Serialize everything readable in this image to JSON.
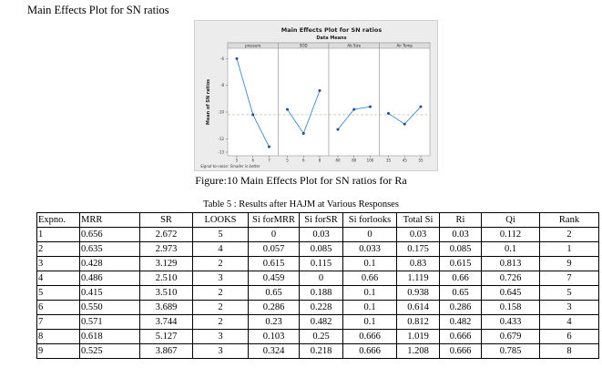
{
  "heading": "Main Effects Plot for SN ratios",
  "chart_data": {
    "type": "line",
    "title": "Main Effects Plot for SN ratios",
    "subtitle": "Data Means",
    "ylabel": "Mean of SN ratios",
    "footnote": "Signal-to-noise: Smaller is better",
    "ylim": [
      -13,
      -5.5
    ],
    "yticks": [
      -6,
      -8,
      -10,
      -12,
      -13
    ],
    "reference_line": -10.2,
    "panels": [
      {
        "name": "pressure",
        "x": [
          "5",
          "6",
          "7"
        ],
        "values": [
          -6.0,
          -10.2,
          -12.6
        ]
      },
      {
        "name": "SOD",
        "x": [
          "5",
          "6",
          "8"
        ],
        "values": [
          -9.8,
          -11.6,
          -8.4
        ]
      },
      {
        "name": "Ab Size",
        "x": [
          "60",
          "80",
          "100"
        ],
        "values": [
          -11.3,
          -9.8,
          -9.6
        ]
      },
      {
        "name": "Air Temp",
        "x": [
          "35",
          "45",
          "55"
        ],
        "values": [
          -10.1,
          -10.9,
          -9.6
        ]
      }
    ]
  },
  "figure_caption": "Figure:10  Main Effects Plot for SN ratios for Ra",
  "table_caption": "Table 5 : Results after HAJM at Various Responses",
  "table": {
    "headers": [
      "Expno.",
      "MRR",
      "SR",
      "LOOKS",
      "Si forMRR",
      "Si forSR",
      "Si forlooks",
      "Total Si",
      "Ri",
      "Qi",
      "Rank"
    ],
    "rows": [
      [
        "1",
        "0.656",
        "2.672",
        "5",
        "0",
        "0.03",
        "0",
        "0.03",
        "0.03",
        "0.112",
        "2"
      ],
      [
        "2",
        "0.635",
        "2.973",
        "4",
        "0.057",
        "0.085",
        "0.033",
        "0.175",
        "0.085",
        "0.1",
        "1"
      ],
      [
        "3",
        "0.428",
        "3.129",
        "2",
        "0.615",
        "0.115",
        "0.1",
        "0.83",
        "0.615",
        "0.813",
        "9"
      ],
      [
        "4",
        "0.486",
        "2.510",
        "3",
        "0.459",
        "0",
        "0.66",
        "1.119",
        "0.66",
        "0.726",
        "7"
      ],
      [
        "5",
        "0.415",
        "3.510",
        "2",
        "0.65",
        "0.188",
        "0.1",
        "0.938",
        "0.65",
        "0.645",
        "5"
      ],
      [
        "6",
        "0.550",
        "3.689",
        "2",
        "0.286",
        "0.228",
        "0.1",
        "0.614",
        "0.286",
        "0.158",
        "3"
      ],
      [
        "7",
        "0.571",
        "3.744",
        "2",
        "0.23",
        "0.482",
        "0.1",
        "0.812",
        "0.482",
        "0.433",
        "4"
      ],
      [
        "8",
        "0.618",
        "5.127",
        "3",
        "0.103",
        "0.25",
        "0.666",
        "1.019",
        "0.666",
        "0.679",
        "6"
      ],
      [
        "9",
        "0.525",
        "3.867",
        "3",
        "0.324",
        "0.218",
        "0.666",
        "1.208",
        "0.666",
        "0.785",
        "8"
      ]
    ]
  },
  "colors": {
    "line": "#3b8bd0",
    "marker": "#1f4e9c",
    "reference": "#b8b0a0",
    "panel_bg": "#ffffff",
    "plot_bg": "#ececec"
  }
}
